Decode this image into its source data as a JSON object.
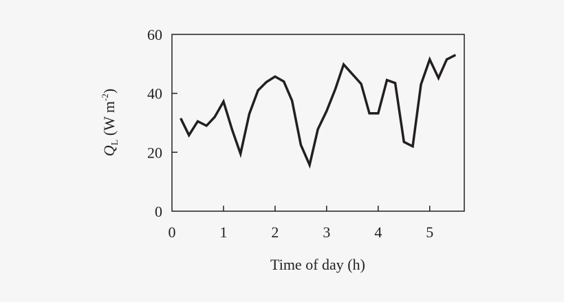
{
  "chart_data": {
    "type": "line",
    "title": "",
    "xlabel": "Time of day (h)",
    "ylabel_main": "Q",
    "ylabel_sub": "L",
    "ylabel_unit": " (W m",
    "ylabel_exp": "-2",
    "ylabel_close": ")",
    "xlim": [
      0,
      5.67
    ],
    "ylim": [
      0,
      60
    ],
    "xticks": [
      "0",
      "1",
      "2",
      "3",
      "4",
      "5"
    ],
    "yticks": [
      "0",
      "20",
      "40",
      "60"
    ],
    "grid": false,
    "line_color": "#231f20",
    "series": [
      {
        "x": [
          0.17,
          0.33,
          0.5,
          0.67,
          0.83,
          1.0,
          1.17,
          1.33,
          1.5,
          1.67,
          1.83,
          2.0,
          2.17,
          2.33,
          2.5,
          2.67,
          2.83,
          3.0,
          3.17,
          3.33,
          3.5,
          3.67,
          3.83,
          4.0,
          4.17,
          4.33,
          4.5,
          4.67,
          4.83,
          5.0,
          5.17,
          5.33,
          5.5
        ],
        "y": [
          31.5,
          25.8,
          30.5,
          29,
          32,
          37.2,
          27.5,
          19.5,
          33,
          41,
          43.8,
          45.7,
          44,
          37.5,
          22.5,
          15.7,
          27.8,
          34,
          41.5,
          49.8,
          46.5,
          43.2,
          33.2,
          33.2,
          44.5,
          43.5,
          23.5,
          22,
          43,
          51.5,
          45.2,
          51.5,
          53
        ]
      }
    ]
  }
}
